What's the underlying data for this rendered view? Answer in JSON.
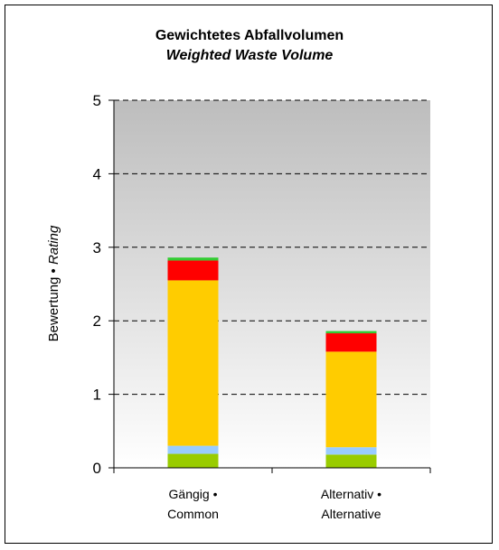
{
  "chart_data": {
    "type": "bar",
    "stacked": true,
    "title": "Gewichtetes Abfallvolumen",
    "subtitle": "Weighted Waste Volume",
    "ylabel_main": "Bewertung • ",
    "ylabel_italic": "Rating",
    "ylim": [
      0,
      5
    ],
    "yticks": [
      "0",
      "1",
      "2",
      "3",
      "4",
      "5"
    ],
    "grid": "dashed",
    "legend": "none",
    "categories": [
      {
        "line1": "Gängig •",
        "line2": "Common"
      },
      {
        "line1": "Alternativ •",
        "line2": "Alternative"
      }
    ],
    "series": [
      {
        "color": "#99cc00",
        "values": [
          0.19,
          0.18
        ]
      },
      {
        "color": "#99ccff",
        "values": [
          0.11,
          0.1
        ]
      },
      {
        "color": "#ffcc00",
        "values": [
          2.25,
          1.3
        ]
      },
      {
        "color": "#ff0000",
        "values": [
          0.27,
          0.25
        ]
      },
      {
        "color": "#33cc33",
        "values": [
          0.04,
          0.03
        ]
      }
    ]
  }
}
